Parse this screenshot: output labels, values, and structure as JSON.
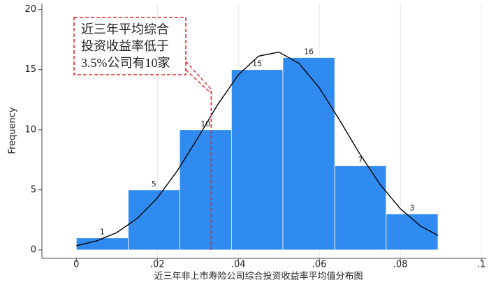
{
  "chart_data": {
    "type": "histogram",
    "x_label": "近三年非上市寿险公司综合投资收益率平均值分布图",
    "y_label": "Frequency",
    "bins": [
      0.0,
      0.0128,
      0.0255,
      0.0383,
      0.051,
      0.0638,
      0.0765,
      0.0893
    ],
    "values": [
      1,
      5,
      10,
      15,
      16,
      7,
      3
    ],
    "color": "#2f8bef",
    "xlim": [
      -0.0085,
      0.1012
    ],
    "ylim": [
      -0.7,
      20.5
    ],
    "xticks": [
      0,
      {
        "value": 0.02,
        "label": ".02"
      },
      {
        "value": 0.04,
        "label": ".04"
      },
      {
        "value": 0.06,
        "label": ".06"
      },
      {
        "value": 0.08,
        "label": ".08"
      },
      {
        "value": 0.1,
        "label": ".1"
      }
    ],
    "yticks": [
      0,
      5,
      10,
      15,
      20
    ],
    "grid": "x",
    "curve": {
      "color": "#000000",
      "x": [
        0,
        0.005,
        0.01,
        0.015,
        0.02,
        0.025,
        0.03,
        0.035,
        0.04,
        0.045,
        0.05,
        0.055,
        0.06,
        0.065,
        0.07,
        0.075,
        0.08,
        0.085,
        0.0893
      ],
      "values": [
        0.35,
        0.75,
        1.45,
        2.61,
        4.32,
        6.62,
        9.32,
        12.14,
        14.56,
        16.12,
        16.46,
        15.51,
        13.48,
        10.8,
        7.98,
        5.45,
        3.43,
        1.99,
        1.2
      ]
    },
    "reference_line": {
      "x": 0.0333,
      "color": "#e8262b"
    },
    "annotation": {
      "lines": [
        "近三年平均综合",
        "投资收益率低于",
        "3.5%公司有10家"
      ]
    }
  }
}
